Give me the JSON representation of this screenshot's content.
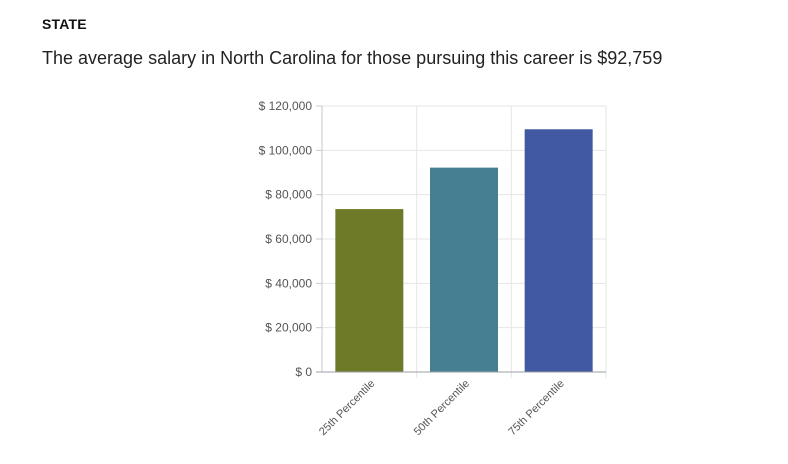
{
  "header": {
    "section_label": "STATE",
    "summary": "The average salary in North Carolina for those pursuing this career is $92,759"
  },
  "chart_data": {
    "type": "bar",
    "categories": [
      "25th Percentile",
      "50th Percentile",
      "75th Percentile"
    ],
    "values": [
      73500,
      92200,
      109500
    ],
    "colors": [
      "#6f7a28",
      "#467f92",
      "#4059a0"
    ],
    "ylim": [
      0,
      120000
    ],
    "yticks": [
      0,
      20000,
      40000,
      60000,
      80000,
      100000,
      120000
    ],
    "ytick_labels": [
      "$ 0",
      "$ 20,000",
      "$ 40,000",
      "$ 60,000",
      "$ 80,000",
      "$ 100,000",
      "$ 120,000"
    ],
    "title": "",
    "xlabel": "",
    "ylabel": "",
    "grid": true,
    "legend": "none"
  }
}
